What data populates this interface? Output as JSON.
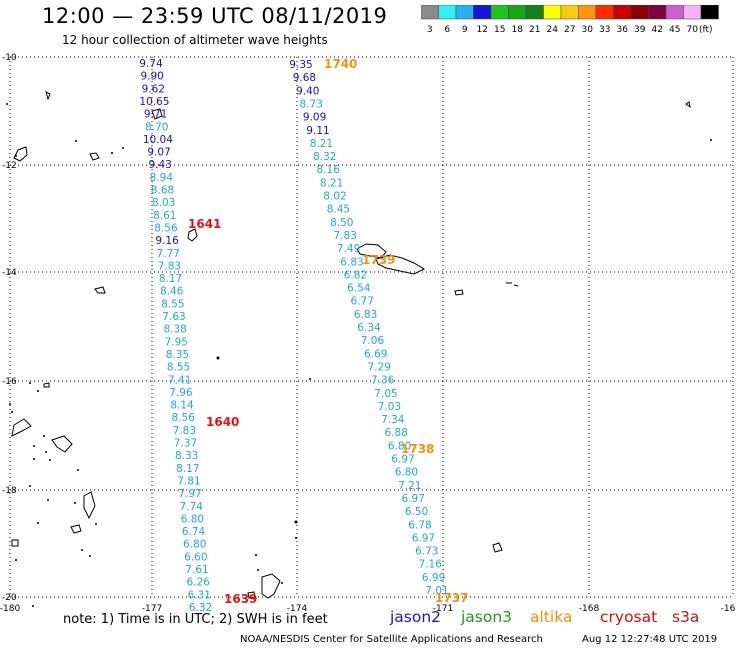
{
  "title": "12:00 — 23:59 UTC 08/11/2019",
  "subtitle": "12 hour collection of altimeter wave heights",
  "colors": {
    "jason2": "#1f12c8",
    "jason3": "#1d9a24",
    "altika": "#f5910c",
    "cryosat": "#e00b0b",
    "s3a": "#b02020",
    "dark_track": "#1a10c0",
    "light_track": "#24a6d8",
    "red_time": "#e41414",
    "orange_time": "#f5920c"
  },
  "color_scale": {
    "labels": [
      "3",
      "6",
      "9",
      "12",
      "15",
      "18",
      "21",
      "24",
      "27",
      "30",
      "33",
      "36",
      "39",
      "42",
      "45",
      "70",
      "(ft)"
    ],
    "colors": [
      "#8a8a8a",
      "#2ff0f5",
      "#26b2f0",
      "#1515d8",
      "#1ec51e",
      "#15a815",
      "#148214",
      "#ffff00",
      "#f7cc10",
      "#ff9510",
      "#ff2a00",
      "#cc0000",
      "#8a0000",
      "#800040",
      "#d060d0",
      "#f8b0f8",
      "#000000"
    ]
  },
  "axes": {
    "lon_labels": [
      "-180",
      "-177",
      "-174",
      "-171",
      "-168",
      "-16"
    ],
    "lat_labels": [
      "-10",
      "-12",
      "-14",
      "-16",
      "-18",
      "-20"
    ]
  },
  "tracks": [
    {
      "name": "left-track",
      "values": [
        "9.74",
        "9.90",
        "9.62",
        "10.65",
        "9.71",
        "8.70",
        "10.04",
        "9.07",
        "9.43",
        "8.94",
        "8.68",
        "8.03",
        "8.61",
        "8.56",
        "9.16",
        "7.77",
        "7.83",
        "8.17",
        "8.46",
        "8.55",
        "7.63",
        "8.38",
        "7.95",
        "8.35",
        "8.55",
        "7.41",
        "7.96",
        "8.14",
        "8.56",
        "7.83",
        "7.37",
        "8.33",
        "8.17",
        "7.81",
        "7.97",
        "7.74",
        "6.80",
        "6.74",
        "6.80",
        "6.60",
        "7.61",
        "6.26",
        "6.31",
        "6.32"
      ],
      "tone": [
        "d",
        "d",
        "d",
        "d",
        "d",
        "l",
        "d",
        "d",
        "d",
        "l",
        "l",
        "l",
        "l",
        "l",
        "d",
        "l",
        "l",
        "l",
        "l",
        "l",
        "l",
        "l",
        "l",
        "l",
        "l",
        "l",
        "l",
        "l",
        "l",
        "l",
        "l",
        "l",
        "l",
        "l",
        "l",
        "l",
        "l",
        "l",
        "l",
        "l",
        "l",
        "l",
        "l",
        "l"
      ]
    },
    {
      "name": "right-track",
      "values": [
        "9.35",
        "9.68",
        "9.40",
        "8.73",
        "9.09",
        "9.11",
        "8.21",
        "8.32",
        "8.16",
        "8.21",
        "8.02",
        "8.45",
        "8.50",
        "7.83",
        "7.49",
        "6.83",
        "6.82",
        "6.54",
        "6.77",
        "6.83",
        "6.34",
        "7.06",
        "6.69",
        "7.29",
        "7.36",
        "7.05",
        "7.03",
        "7.34",
        "6.88",
        "6.80",
        "6.97",
        "6.80",
        "7.21",
        "6.97",
        "6.50",
        "6.78",
        "6.97",
        "6.73",
        "7.16",
        "6.99",
        "7.01"
      ],
      "tone": [
        "d",
        "d",
        "d",
        "l",
        "d",
        "d",
        "l",
        "l",
        "l",
        "l",
        "l",
        "l",
        "l",
        "l",
        "l",
        "l",
        "l",
        "l",
        "l",
        "l",
        "l",
        "l",
        "l",
        "l",
        "l",
        "l",
        "l",
        "l",
        "l",
        "l",
        "l",
        "l",
        "l",
        "l",
        "l",
        "l",
        "l",
        "l",
        "l",
        "l",
        "l"
      ]
    }
  ],
  "time_labels": [
    {
      "text": "1740",
      "kind": "orange"
    },
    {
      "text": "1641",
      "kind": "red"
    },
    {
      "text": "1739",
      "kind": "orange"
    },
    {
      "text": "1640",
      "kind": "red"
    },
    {
      "text": "1738",
      "kind": "orange"
    },
    {
      "text": "1639",
      "kind": "red"
    },
    {
      "text": "1737",
      "kind": "orange"
    }
  ],
  "note": "note: 1) Time is in UTC; 2) SWH is in feet",
  "missions": [
    "jason2",
    "jason3",
    "altika",
    "cryosat",
    "s3a"
  ],
  "credit": "NOAA/NESDIS Center for Satellite Applications and Research",
  "timestamp": "Aug 12 12:27:48 UTC 2019"
}
